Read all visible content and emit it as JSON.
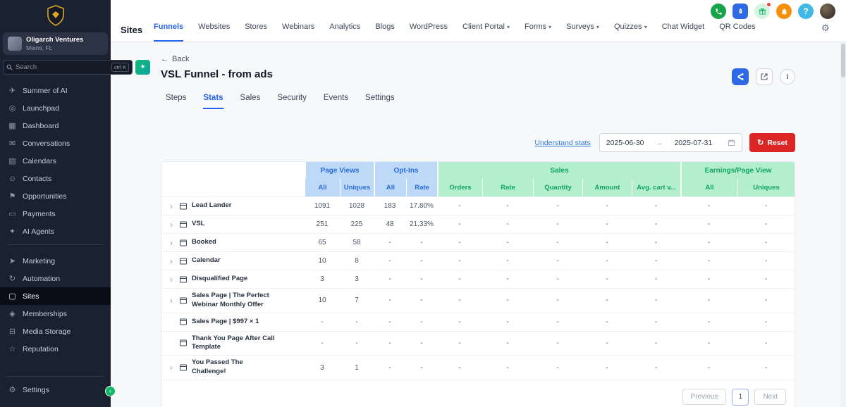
{
  "colors": {
    "accent_blue": "#2563eb",
    "danger_red": "#dc2626",
    "success_green": "#16a34a",
    "header_blue_bg": "#bdd9f7",
    "header_blue_text": "#2b6cd9",
    "header_green_bg": "#b3efcd",
    "header_green_text": "#12a35f",
    "sidebar_bg": "#1a2130"
  },
  "sidebar": {
    "account": {
      "name": "Oligarch Ventures",
      "location": "Miami, FL"
    },
    "search": {
      "placeholder": "Search",
      "shortcut": "ctrl K",
      "ai_button_glyph": "✦"
    },
    "primary_items": [
      {
        "icon": "summer-of-ai-icon",
        "glyph": "✈",
        "label": "Summer of AI"
      },
      {
        "icon": "launchpad-icon",
        "glyph": "◎",
        "label": "Launchpad"
      },
      {
        "icon": "dashboard-icon",
        "glyph": "▦",
        "label": "Dashboard"
      },
      {
        "icon": "conversations-icon",
        "glyph": "✉",
        "label": "Conversations"
      },
      {
        "icon": "calendars-icon",
        "glyph": "▤",
        "label": "Calendars"
      },
      {
        "icon": "contacts-icon",
        "glyph": "☺",
        "label": "Contacts"
      },
      {
        "icon": "opportunities-icon",
        "glyph": "⚑",
        "label": "Opportunities"
      },
      {
        "icon": "payments-icon",
        "glyph": "▭",
        "label": "Payments"
      },
      {
        "icon": "ai-agents-icon",
        "glyph": "✦",
        "label": "AI Agents"
      }
    ],
    "secondary_items": [
      {
        "icon": "marketing-icon",
        "glyph": "➤",
        "label": "Marketing"
      },
      {
        "icon": "automation-icon",
        "glyph": "↻",
        "label": "Automation"
      },
      {
        "icon": "sites-icon",
        "glyph": "▢",
        "label": "Sites",
        "active": true
      },
      {
        "icon": "memberships-icon",
        "glyph": "◈",
        "label": "Memberships"
      },
      {
        "icon": "media-storage-icon",
        "glyph": "⊟",
        "label": "Media Storage"
      },
      {
        "icon": "reputation-icon",
        "glyph": "☆",
        "label": "Reputation"
      }
    ],
    "settings": {
      "icon": "settings-icon",
      "glyph": "⚙",
      "label": "Settings"
    }
  },
  "topnav": {
    "title": "Sites",
    "tabs": [
      {
        "label": "Funnels",
        "active": true
      },
      {
        "label": "Websites"
      },
      {
        "label": "Stores"
      },
      {
        "label": "Webinars"
      },
      {
        "label": "Analytics"
      },
      {
        "label": "Blogs"
      },
      {
        "label": "WordPress"
      },
      {
        "label": "Client Portal",
        "dropdown": true
      },
      {
        "label": "Forms",
        "dropdown": true
      },
      {
        "label": "Surveys",
        "dropdown": true
      },
      {
        "label": "Quizzes",
        "dropdown": true
      },
      {
        "label": "Chat Widget"
      },
      {
        "label": "QR Codes"
      }
    ],
    "icon_buttons": [
      "phone",
      "rocket",
      "rewards",
      "notifications",
      "help",
      "profile"
    ],
    "help_glyph": "?"
  },
  "page": {
    "back_label": "Back",
    "back_arrow": "←",
    "title": "VSL Funnel - from ads",
    "tabs": [
      {
        "label": "Steps"
      },
      {
        "label": "Stats",
        "active": true
      },
      {
        "label": "Sales"
      },
      {
        "label": "Security"
      },
      {
        "label": "Events"
      },
      {
        "label": "Settings"
      }
    ],
    "understand_stats_label": "Understand stats",
    "date_from": "2025-06-30",
    "date_arrow": "→",
    "date_to": "2025-07-31",
    "reset_label": "Reset",
    "reset_icon_glyph": "↻"
  },
  "table": {
    "groups": [
      "Page Views",
      "Opt-Ins",
      "Sales",
      "Earnings/Page View"
    ],
    "columns": [
      "All",
      "Uniques",
      "All",
      "Rate",
      "Orders",
      "Rate",
      "Quantity",
      "Amount",
      "Avg. cart v...",
      "All",
      "Uniques"
    ],
    "rows": [
      {
        "name": "Lead Lander",
        "expandable": true,
        "values": [
          "1091",
          "1028",
          "183",
          "17.80%",
          "-",
          "-",
          "-",
          "-",
          "-",
          "-",
          "-"
        ]
      },
      {
        "name": "VSL",
        "expandable": true,
        "values": [
          "251",
          "225",
          "48",
          "21.33%",
          "-",
          "-",
          "-",
          "-",
          "-",
          "-",
          "-"
        ]
      },
      {
        "name": "Booked",
        "expandable": true,
        "values": [
          "65",
          "58",
          "-",
          "-",
          "-",
          "-",
          "-",
          "-",
          "-",
          "-",
          "-"
        ]
      },
      {
        "name": "Calendar",
        "expandable": true,
        "values": [
          "10",
          "8",
          "-",
          "-",
          "-",
          "-",
          "-",
          "-",
          "-",
          "-",
          "-"
        ]
      },
      {
        "name": "Disqualified Page",
        "expandable": true,
        "values": [
          "3",
          "3",
          "-",
          "-",
          "-",
          "-",
          "-",
          "-",
          "-",
          "-",
          "-"
        ]
      },
      {
        "name": "Sales Page | The Perfect Webinar Monthly Offer",
        "expandable": true,
        "values": [
          "10",
          "7",
          "-",
          "-",
          "-",
          "-",
          "-",
          "-",
          "-",
          "-",
          "-"
        ]
      },
      {
        "name": "Sales Page | $997 × 1",
        "expandable": false,
        "values": [
          "-",
          "-",
          "-",
          "-",
          "-",
          "-",
          "-",
          "-",
          "-",
          "-",
          "-"
        ]
      },
      {
        "name": "Thank You Page After Call Template",
        "expandable": false,
        "values": [
          "-",
          "-",
          "-",
          "-",
          "-",
          "-",
          "-",
          "-",
          "-",
          "-",
          "-"
        ]
      },
      {
        "name": "You Passed The Challenge!",
        "expandable": true,
        "values": [
          "3",
          "1",
          "-",
          "-",
          "-",
          "-",
          "-",
          "-",
          "-",
          "-",
          "-"
        ]
      }
    ]
  },
  "pagination": {
    "previous_label": "Previous",
    "current_page": "1",
    "next_label": "Next"
  }
}
